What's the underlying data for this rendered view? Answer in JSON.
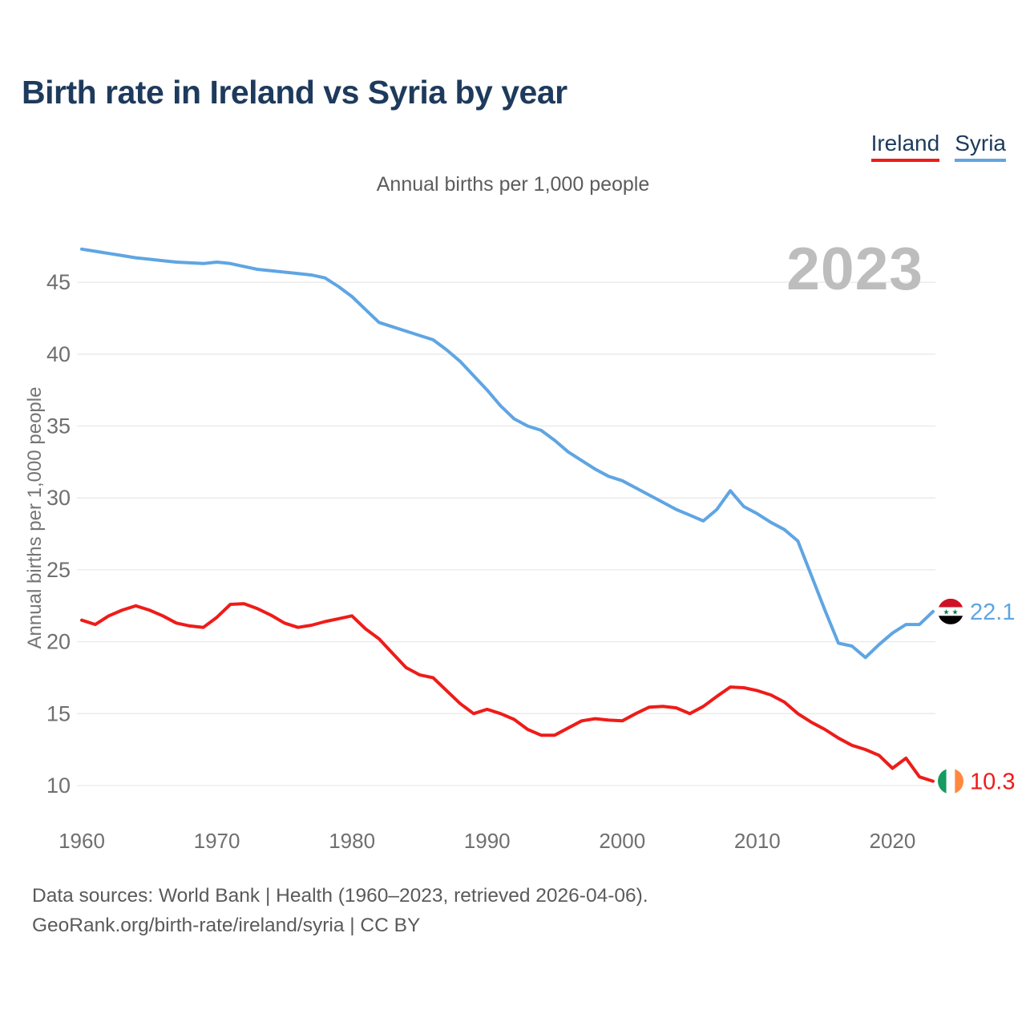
{
  "header": {
    "title": "Birth rate in Ireland vs Syria by year",
    "subtitle": "Annual births per 1,000 people"
  },
  "legend": {
    "items": [
      {
        "label": "Ireland",
        "color": "#ee1c19"
      },
      {
        "label": "Syria",
        "color": "#5fa5e3"
      }
    ]
  },
  "footer": {
    "line1": "Data sources: World Bank | Health (1960–2023, retrieved 2026-04-06).",
    "line2": "GeoRank.org/birth-rate/ireland/syria | CC BY"
  },
  "chart_data": {
    "type": "line",
    "title": "Birth rate in Ireland vs Syria by year",
    "subtitle": "Annual births per 1,000 people",
    "ylabel": "Annual births per 1,000 people",
    "xlabel": "",
    "watermark": "2023",
    "grid": "horizontal-only",
    "legend_position": "top-right",
    "xlim": [
      1960,
      2023
    ],
    "ylim": [
      8.8,
      48
    ],
    "y_ticks": [
      10,
      15,
      20,
      25,
      30,
      35,
      40,
      45
    ],
    "x_ticks": [
      1960,
      1970,
      1980,
      1990,
      2000,
      2010,
      2020
    ],
    "x": [
      1960,
      1961,
      1962,
      1963,
      1964,
      1965,
      1966,
      1967,
      1968,
      1969,
      1970,
      1971,
      1972,
      1973,
      1974,
      1975,
      1976,
      1977,
      1978,
      1979,
      1980,
      1981,
      1982,
      1983,
      1984,
      1985,
      1986,
      1987,
      1988,
      1989,
      1990,
      1991,
      1992,
      1993,
      1994,
      1995,
      1996,
      1997,
      1998,
      1999,
      2000,
      2001,
      2002,
      2003,
      2004,
      2005,
      2006,
      2007,
      2008,
      2009,
      2010,
      2011,
      2012,
      2013,
      2014,
      2015,
      2016,
      2017,
      2018,
      2019,
      2020,
      2021,
      2022,
      2023
    ],
    "series": [
      {
        "name": "Syria",
        "color": "#5fa5e3",
        "end_label": "22.1",
        "flag": "syria",
        "flag_colors": [
          "#CE1126",
          "#ffffff",
          "#000000",
          "#007A3D"
        ],
        "values": [
          47.3,
          47.15,
          47.0,
          46.85,
          46.7,
          46.6,
          46.5,
          46.4,
          46.35,
          46.3,
          46.4,
          46.3,
          46.1,
          45.9,
          45.8,
          45.7,
          45.6,
          45.5,
          45.3,
          44.7,
          44.0,
          43.1,
          42.2,
          41.9,
          41.6,
          41.3,
          41.0,
          40.3,
          39.5,
          38.5,
          37.5,
          36.4,
          35.5,
          35.0,
          34.7,
          34.0,
          33.2,
          32.6,
          32.0,
          31.5,
          31.2,
          30.7,
          30.2,
          29.7,
          29.2,
          28.8,
          28.4,
          29.2,
          30.5,
          29.4,
          28.9,
          28.3,
          27.8,
          27.0,
          24.6,
          22.2,
          19.9,
          19.7,
          18.9,
          19.8,
          20.6,
          21.2,
          21.2,
          22.1
        ]
      },
      {
        "name": "Ireland",
        "color": "#ee1c19",
        "end_label": "10.3",
        "flag": "ireland",
        "flag_colors": [
          "#169B62",
          "#ffffff",
          "#FF883E"
        ],
        "values": [
          21.5,
          21.2,
          21.8,
          22.2,
          22.5,
          22.2,
          21.8,
          21.3,
          21.1,
          21.0,
          21.7,
          22.6,
          22.65,
          22.3,
          21.85,
          21.3,
          21.0,
          21.15,
          21.4,
          21.6,
          21.8,
          20.9,
          20.2,
          19.2,
          18.2,
          17.7,
          17.5,
          16.6,
          15.7,
          15.0,
          15.3,
          15.0,
          14.6,
          13.9,
          13.5,
          13.5,
          14.0,
          14.5,
          14.65,
          14.55,
          14.5,
          15.0,
          15.45,
          15.5,
          15.4,
          15.0,
          15.5,
          16.2,
          16.85,
          16.8,
          16.6,
          16.3,
          15.8,
          15.0,
          14.4,
          13.9,
          13.3,
          12.8,
          12.5,
          12.1,
          11.2,
          11.9,
          10.6,
          10.3
        ]
      }
    ]
  }
}
